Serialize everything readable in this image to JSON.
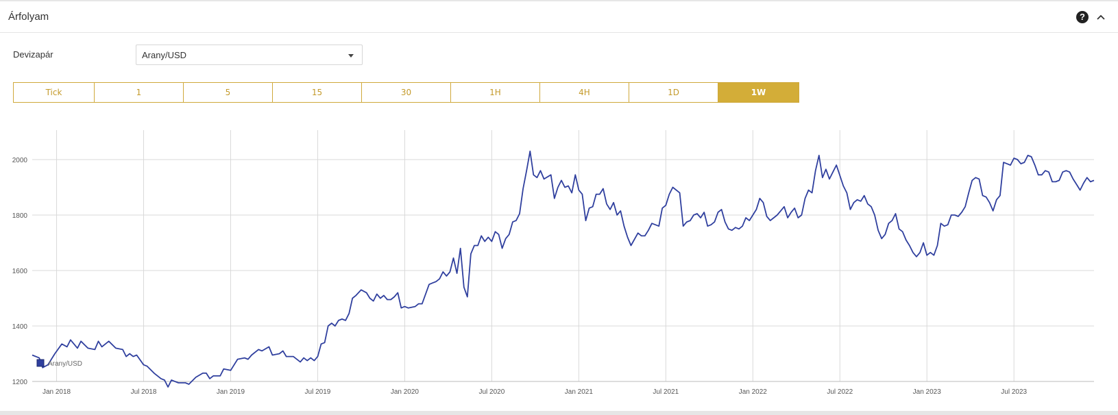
{
  "panel": {
    "title": "Árfolyam",
    "icons": [
      "question-circle-icon",
      "chevron-up-icon"
    ]
  },
  "pair": {
    "label": "Devizapár",
    "selected": "Arany/USD"
  },
  "timeframes": [
    {
      "label": "Tick",
      "active": false
    },
    {
      "label": "1",
      "active": false
    },
    {
      "label": "5",
      "active": false
    },
    {
      "label": "15",
      "active": false
    },
    {
      "label": "30",
      "active": false
    },
    {
      "label": "1H",
      "active": false
    },
    {
      "label": "4H",
      "active": false
    },
    {
      "label": "1D",
      "active": false
    },
    {
      "label": "1W",
      "active": true
    }
  ],
  "colors": {
    "accent": "#d3ad38",
    "line": "#2f3f9e",
    "grid": "#d9d9d9"
  },
  "chart_data": {
    "type": "line",
    "legend": "Arany/USD",
    "legend_position": "bottom-left",
    "grid": true,
    "ylim": [
      1200,
      2100
    ],
    "yticks": [
      1200,
      1400,
      1600,
      1800,
      2000
    ],
    "xticks": [
      {
        "label": "Jan 2018",
        "t": 2018.0
      },
      {
        "label": "Jul 2018",
        "t": 2018.5
      },
      {
        "label": "Jan 2019",
        "t": 2019.0
      },
      {
        "label": "Jul 2019",
        "t": 2019.5
      },
      {
        "label": "Jan 2020",
        "t": 2020.0
      },
      {
        "label": "Jul 2020",
        "t": 2020.5
      },
      {
        "label": "Jan 2021",
        "t": 2021.0
      },
      {
        "label": "Jul 2021",
        "t": 2021.5
      },
      {
        "label": "Jan 2022",
        "t": 2022.0
      },
      {
        "label": "Jul 2022",
        "t": 2022.5
      },
      {
        "label": "Jan 2023",
        "t": 2023.0
      },
      {
        "label": "Jul 2023",
        "t": 2023.5
      }
    ],
    "xlim": [
      2017.86,
      2023.96
    ],
    "series": [
      {
        "name": "Arany/USD",
        "points": [
          [
            2017.86,
            1295
          ],
          [
            2017.9,
            1285
          ],
          [
            2017.92,
            1250
          ],
          [
            2017.95,
            1260
          ],
          [
            2017.99,
            1300
          ],
          [
            2018.03,
            1335
          ],
          [
            2018.06,
            1325
          ],
          [
            2018.08,
            1350
          ],
          [
            2018.12,
            1320
          ],
          [
            2018.14,
            1345
          ],
          [
            2018.18,
            1320
          ],
          [
            2018.22,
            1315
          ],
          [
            2018.24,
            1345
          ],
          [
            2018.26,
            1325
          ],
          [
            2018.3,
            1345
          ],
          [
            2018.34,
            1320
          ],
          [
            2018.38,
            1315
          ],
          [
            2018.4,
            1290
          ],
          [
            2018.42,
            1300
          ],
          [
            2018.44,
            1290
          ],
          [
            2018.46,
            1295
          ],
          [
            2018.5,
            1260
          ],
          [
            2018.52,
            1255
          ],
          [
            2018.56,
            1230
          ],
          [
            2018.6,
            1210
          ],
          [
            2018.62,
            1205
          ],
          [
            2018.64,
            1180
          ],
          [
            2018.66,
            1205
          ],
          [
            2018.7,
            1195
          ],
          [
            2018.74,
            1195
          ],
          [
            2018.76,
            1190
          ],
          [
            2018.8,
            1215
          ],
          [
            2018.84,
            1230
          ],
          [
            2018.86,
            1230
          ],
          [
            2018.88,
            1210
          ],
          [
            2018.9,
            1220
          ],
          [
            2018.94,
            1220
          ],
          [
            2018.96,
            1245
          ],
          [
            2019.0,
            1240
          ],
          [
            2019.04,
            1280
          ],
          [
            2019.08,
            1285
          ],
          [
            2019.1,
            1280
          ],
          [
            2019.12,
            1295
          ],
          [
            2019.16,
            1315
          ],
          [
            2019.18,
            1310
          ],
          [
            2019.22,
            1325
          ],
          [
            2019.24,
            1295
          ],
          [
            2019.28,
            1300
          ],
          [
            2019.3,
            1310
          ],
          [
            2019.32,
            1290
          ],
          [
            2019.36,
            1290
          ],
          [
            2019.38,
            1280
          ],
          [
            2019.4,
            1270
          ],
          [
            2019.42,
            1285
          ],
          [
            2019.44,
            1275
          ],
          [
            2019.46,
            1285
          ],
          [
            2019.48,
            1275
          ],
          [
            2019.5,
            1290
          ],
          [
            2019.52,
            1335
          ],
          [
            2019.54,
            1340
          ],
          [
            2019.56,
            1400
          ],
          [
            2019.58,
            1410
          ],
          [
            2019.6,
            1400
          ],
          [
            2019.62,
            1420
          ],
          [
            2019.64,
            1425
          ],
          [
            2019.66,
            1420
          ],
          [
            2019.68,
            1445
          ],
          [
            2019.7,
            1500
          ],
          [
            2019.72,
            1510
          ],
          [
            2019.75,
            1530
          ],
          [
            2019.78,
            1520
          ],
          [
            2019.8,
            1500
          ],
          [
            2019.82,
            1490
          ],
          [
            2019.84,
            1515
          ],
          [
            2019.86,
            1500
          ],
          [
            2019.88,
            1510
          ],
          [
            2019.9,
            1495
          ],
          [
            2019.92,
            1495
          ],
          [
            2019.94,
            1505
          ],
          [
            2019.96,
            1520
          ],
          [
            2019.98,
            1465
          ],
          [
            2020.0,
            1470
          ],
          [
            2020.02,
            1465
          ],
          [
            2020.06,
            1470
          ],
          [
            2020.08,
            1480
          ],
          [
            2020.1,
            1480
          ],
          [
            2020.14,
            1550
          ],
          [
            2020.16,
            1555
          ],
          [
            2020.18,
            1560
          ],
          [
            2020.2,
            1570
          ],
          [
            2020.22,
            1595
          ],
          [
            2020.24,
            1580
          ],
          [
            2020.26,
            1595
          ],
          [
            2020.28,
            1645
          ],
          [
            2020.3,
            1590
          ],
          [
            2020.32,
            1680
          ],
          [
            2020.34,
            1540
          ],
          [
            2020.36,
            1505
          ],
          [
            2020.38,
            1660
          ],
          [
            2020.4,
            1690
          ],
          [
            2020.42,
            1690
          ],
          [
            2020.44,
            1725
          ],
          [
            2020.46,
            1705
          ],
          [
            2020.48,
            1720
          ],
          [
            2020.5,
            1705
          ],
          [
            2020.52,
            1740
          ],
          [
            2020.54,
            1730
          ],
          [
            2020.56,
            1680
          ],
          [
            2020.58,
            1715
          ],
          [
            2020.6,
            1730
          ],
          [
            2020.62,
            1775
          ],
          [
            2020.64,
            1780
          ],
          [
            2020.66,
            1805
          ],
          [
            2020.68,
            1895
          ],
          [
            2020.7,
            1960
          ],
          [
            2020.72,
            2030
          ],
          [
            2020.74,
            1945
          ],
          [
            2020.76,
            1935
          ],
          [
            2020.78,
            1960
          ],
          [
            2020.8,
            1930
          ],
          [
            2020.84,
            1945
          ],
          [
            2020.86,
            1860
          ],
          [
            2020.88,
            1900
          ],
          [
            2020.9,
            1925
          ],
          [
            2020.92,
            1900
          ],
          [
            2020.94,
            1905
          ],
          [
            2020.96,
            1880
          ],
          [
            2020.98,
            1945
          ],
          [
            2021.0,
            1890
          ],
          [
            2021.02,
            1875
          ],
          [
            2021.04,
            1780
          ],
          [
            2021.06,
            1825
          ],
          [
            2021.08,
            1830
          ],
          [
            2021.1,
            1875
          ],
          [
            2021.12,
            1875
          ],
          [
            2021.14,
            1895
          ],
          [
            2021.16,
            1840
          ],
          [
            2021.18,
            1820
          ],
          [
            2021.2,
            1845
          ],
          [
            2021.22,
            1800
          ],
          [
            2021.24,
            1815
          ],
          [
            2021.26,
            1760
          ],
          [
            2021.28,
            1720
          ],
          [
            2021.3,
            1690
          ],
          [
            2021.34,
            1735
          ],
          [
            2021.36,
            1725
          ],
          [
            2021.38,
            1725
          ],
          [
            2021.4,
            1745
          ],
          [
            2021.42,
            1770
          ],
          [
            2021.44,
            1765
          ],
          [
            2021.46,
            1760
          ],
          [
            2021.48,
            1825
          ],
          [
            2021.5,
            1835
          ],
          [
            2021.52,
            1875
          ],
          [
            2021.54,
            1900
          ],
          [
            2021.58,
            1880
          ],
          [
            2021.6,
            1760
          ],
          [
            2021.62,
            1775
          ],
          [
            2021.64,
            1780
          ],
          [
            2021.66,
            1800
          ],
          [
            2021.68,
            1805
          ],
          [
            2021.7,
            1790
          ],
          [
            2021.72,
            1810
          ],
          [
            2021.74,
            1760
          ],
          [
            2021.76,
            1765
          ],
          [
            2021.78,
            1775
          ],
          [
            2021.8,
            1810
          ],
          [
            2021.82,
            1820
          ],
          [
            2021.84,
            1775
          ],
          [
            2021.86,
            1750
          ],
          [
            2021.88,
            1745
          ],
          [
            2021.9,
            1755
          ],
          [
            2021.92,
            1750
          ],
          [
            2021.94,
            1760
          ],
          [
            2021.96,
            1790
          ],
          [
            2021.98,
            1780
          ],
          [
            2022.0,
            1800
          ],
          [
            2022.02,
            1820
          ],
          [
            2022.04,
            1860
          ],
          [
            2022.06,
            1845
          ],
          [
            2022.08,
            1795
          ],
          [
            2022.1,
            1780
          ],
          [
            2022.12,
            1790
          ],
          [
            2022.14,
            1800
          ],
          [
            2022.16,
            1815
          ],
          [
            2022.18,
            1830
          ],
          [
            2022.2,
            1790
          ],
          [
            2022.22,
            1810
          ],
          [
            2022.24,
            1825
          ],
          [
            2022.26,
            1790
          ],
          [
            2022.28,
            1800
          ],
          [
            2022.3,
            1860
          ],
          [
            2022.32,
            1890
          ],
          [
            2022.34,
            1880
          ],
          [
            2022.36,
            1960
          ],
          [
            2022.38,
            2015
          ],
          [
            2022.4,
            1935
          ],
          [
            2022.42,
            1965
          ],
          [
            2022.44,
            1930
          ],
          [
            2022.46,
            1955
          ],
          [
            2022.48,
            1980
          ],
          [
            2022.52,
            1905
          ],
          [
            2022.54,
            1880
          ],
          [
            2022.56,
            1820
          ],
          [
            2022.58,
            1845
          ],
          [
            2022.6,
            1855
          ],
          [
            2022.62,
            1850
          ],
          [
            2022.64,
            1870
          ],
          [
            2022.66,
            1840
          ],
          [
            2022.68,
            1830
          ],
          [
            2022.7,
            1800
          ],
          [
            2022.72,
            1745
          ],
          [
            2022.74,
            1715
          ],
          [
            2022.76,
            1730
          ],
          [
            2022.78,
            1770
          ],
          [
            2022.8,
            1780
          ],
          [
            2022.82,
            1805
          ],
          [
            2022.84,
            1750
          ],
          [
            2022.86,
            1740
          ],
          [
            2022.88,
            1710
          ],
          [
            2022.9,
            1690
          ],
          [
            2022.92,
            1665
          ],
          [
            2022.94,
            1650
          ],
          [
            2022.96,
            1665
          ],
          [
            2022.98,
            1700
          ],
          [
            2023.0,
            1655
          ],
          [
            2023.02,
            1665
          ],
          [
            2023.04,
            1655
          ],
          [
            2023.06,
            1690
          ],
          [
            2023.08,
            1770
          ],
          [
            2023.1,
            1760
          ],
          [
            2023.12,
            1765
          ],
          [
            2023.14,
            1800
          ],
          [
            2023.16,
            1800
          ],
          [
            2023.18,
            1795
          ],
          [
            2023.2,
            1810
          ],
          [
            2023.22,
            1830
          ],
          [
            2023.24,
            1880
          ],
          [
            2023.26,
            1925
          ],
          [
            2023.28,
            1935
          ],
          [
            2023.3,
            1930
          ],
          [
            2023.32,
            1870
          ],
          [
            2023.34,
            1865
          ],
          [
            2023.36,
            1845
          ],
          [
            2023.38,
            1815
          ],
          [
            2023.4,
            1855
          ],
          [
            2023.42,
            1870
          ],
          [
            2023.44,
            1990
          ],
          [
            2023.46,
            1985
          ],
          [
            2023.48,
            1980
          ],
          [
            2023.5,
            2005
          ],
          [
            2023.52,
            2000
          ],
          [
            2023.54,
            1985
          ],
          [
            2023.56,
            1990
          ],
          [
            2023.58,
            2015
          ],
          [
            2023.6,
            2010
          ],
          [
            2023.62,
            1980
          ],
          [
            2023.64,
            1945
          ],
          [
            2023.66,
            1945
          ],
          [
            2023.68,
            1960
          ],
          [
            2023.7,
            1955
          ],
          [
            2023.72,
            1920
          ],
          [
            2023.74,
            1920
          ],
          [
            2023.76,
            1925
          ],
          [
            2023.78,
            1955
          ],
          [
            2023.8,
            1960
          ],
          [
            2023.82,
            1955
          ],
          [
            2023.84,
            1930
          ],
          [
            2023.86,
            1910
          ],
          [
            2023.88,
            1890
          ],
          [
            2023.9,
            1915
          ],
          [
            2023.92,
            1935
          ],
          [
            2023.94,
            1920
          ],
          [
            2023.96,
            1925
          ]
        ]
      }
    ]
  }
}
